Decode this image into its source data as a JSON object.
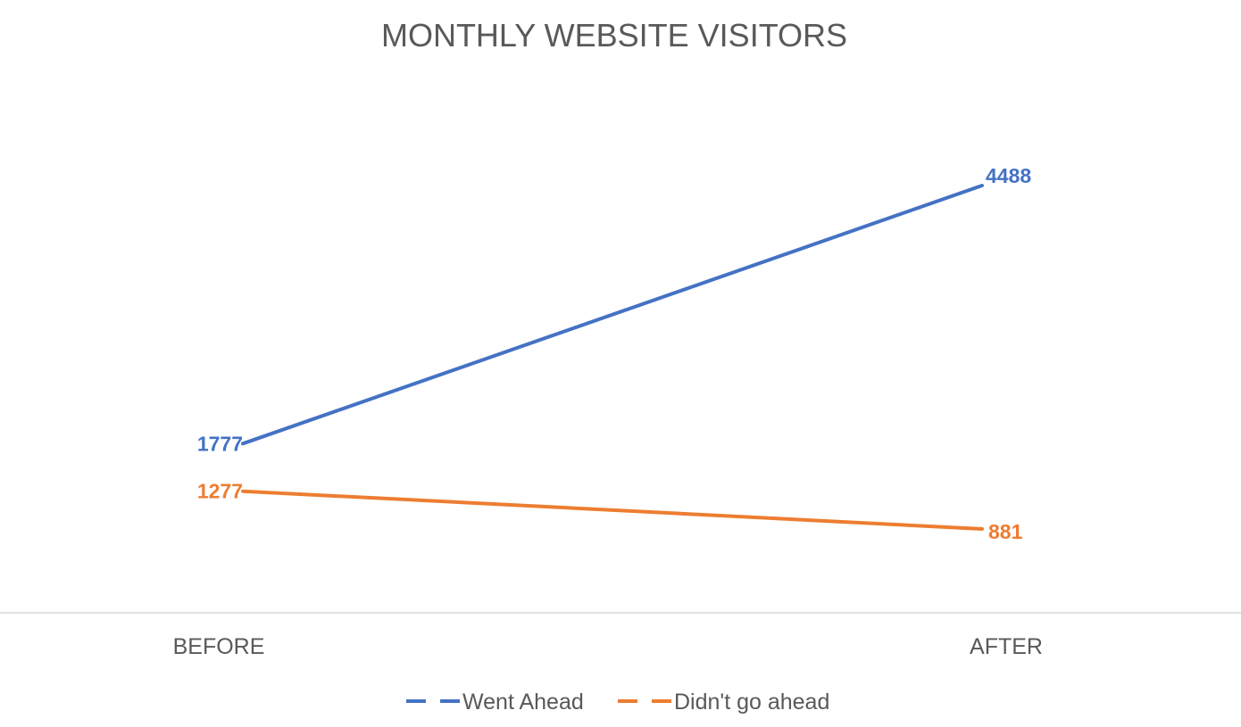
{
  "chart_data": {
    "type": "line",
    "title": "MONTHLY WEBSITE VISITORS",
    "xlabel": "",
    "ylabel": "",
    "categories": [
      "BEFORE",
      "AFTER"
    ],
    "series": [
      {
        "name": "Went Ahead",
        "values": [
          1777,
          4488
        ],
        "labels": [
          "1777",
          "4488"
        ],
        "color": "#4472C4"
      },
      {
        "name": "Didn't go ahead",
        "values": [
          1277,
          881
        ],
        "labels": [
          "1277",
          "881"
        ],
        "color": "#ED7D31"
      }
    ],
    "ylim": [
      0,
      5500
    ],
    "y_axis_visible": false,
    "grid": false,
    "data_labels": true,
    "legend_position": "bottom",
    "axis_color": "#D9D9D9"
  }
}
